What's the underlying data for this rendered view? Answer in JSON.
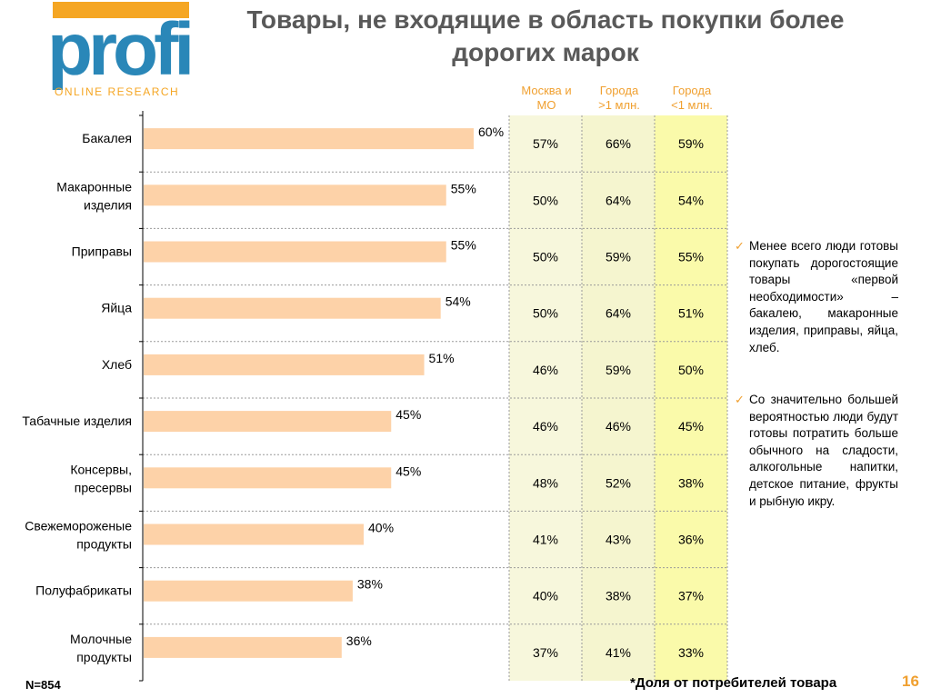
{
  "logo": {
    "text": "profi",
    "subtitle": "ONLINE RESEARCH"
  },
  "title": "Товары, не входящие в область покупки более дорогих марок",
  "column_headers": [
    {
      "line1": "Москва и",
      "line2": "МО"
    },
    {
      "line1": "Города",
      "line2": ">1 млн."
    },
    {
      "line1": "Города",
      "line2": "<1 млн."
    }
  ],
  "colors": {
    "bar": "#fdd2a8",
    "accent": "#f0a030",
    "col_moscow": "#f7f7dc",
    "col_big": "#f5f5cf",
    "col_small": "#fafaaa"
  },
  "chart_data": {
    "type": "bar",
    "orientation": "horizontal",
    "categories": [
      [
        "Бакалея"
      ],
      [
        "Макаронные",
        "изделия"
      ],
      [
        "Приправы"
      ],
      [
        "Яйца"
      ],
      [
        "Хлеб"
      ],
      [
        "Табачные изделия"
      ],
      [
        "Консервы,",
        "пресервы"
      ],
      [
        "Свежемороженые",
        "продукты"
      ],
      [
        "Полуфабрикаты"
      ],
      [
        "Молочные",
        "продукты"
      ]
    ],
    "values": [
      60,
      55,
      55,
      54,
      51,
      45,
      45,
      40,
      38,
      36
    ],
    "value_labels": [
      "60%",
      "55%",
      "55%",
      "54%",
      "51%",
      "45%",
      "45%",
      "40%",
      "38%",
      "36%"
    ],
    "table": {
      "columns": [
        "Москва и МО",
        "Города >1 млн.",
        "Города <1 млн."
      ],
      "rows": [
        [
          "57%",
          "66%",
          "59%"
        ],
        [
          "50%",
          "64%",
          "54%"
        ],
        [
          "50%",
          "59%",
          "55%"
        ],
        [
          "50%",
          "64%",
          "51%"
        ],
        [
          "46%",
          "59%",
          "50%"
        ],
        [
          "46%",
          "46%",
          "45%"
        ],
        [
          "48%",
          "52%",
          "38%"
        ],
        [
          "41%",
          "43%",
          "36%"
        ],
        [
          "40%",
          "38%",
          "37%"
        ],
        [
          "37%",
          "41%",
          "33%"
        ]
      ]
    }
  },
  "notes": [
    "Менее всего люди готовы покупать дорогостоящие товары «первой необходимости» – бакалею, макаронные изделия, приправы, яйца, хлеб.",
    "Со значительно большей вероятностью люди будут готовы потратить больше обычного на сладости, алкогольные напитки, детское питание, фрукты и рыбную икру."
  ],
  "sample": "N=854",
  "footnote": "*Доля  от потребителей товара",
  "page_number": "16"
}
